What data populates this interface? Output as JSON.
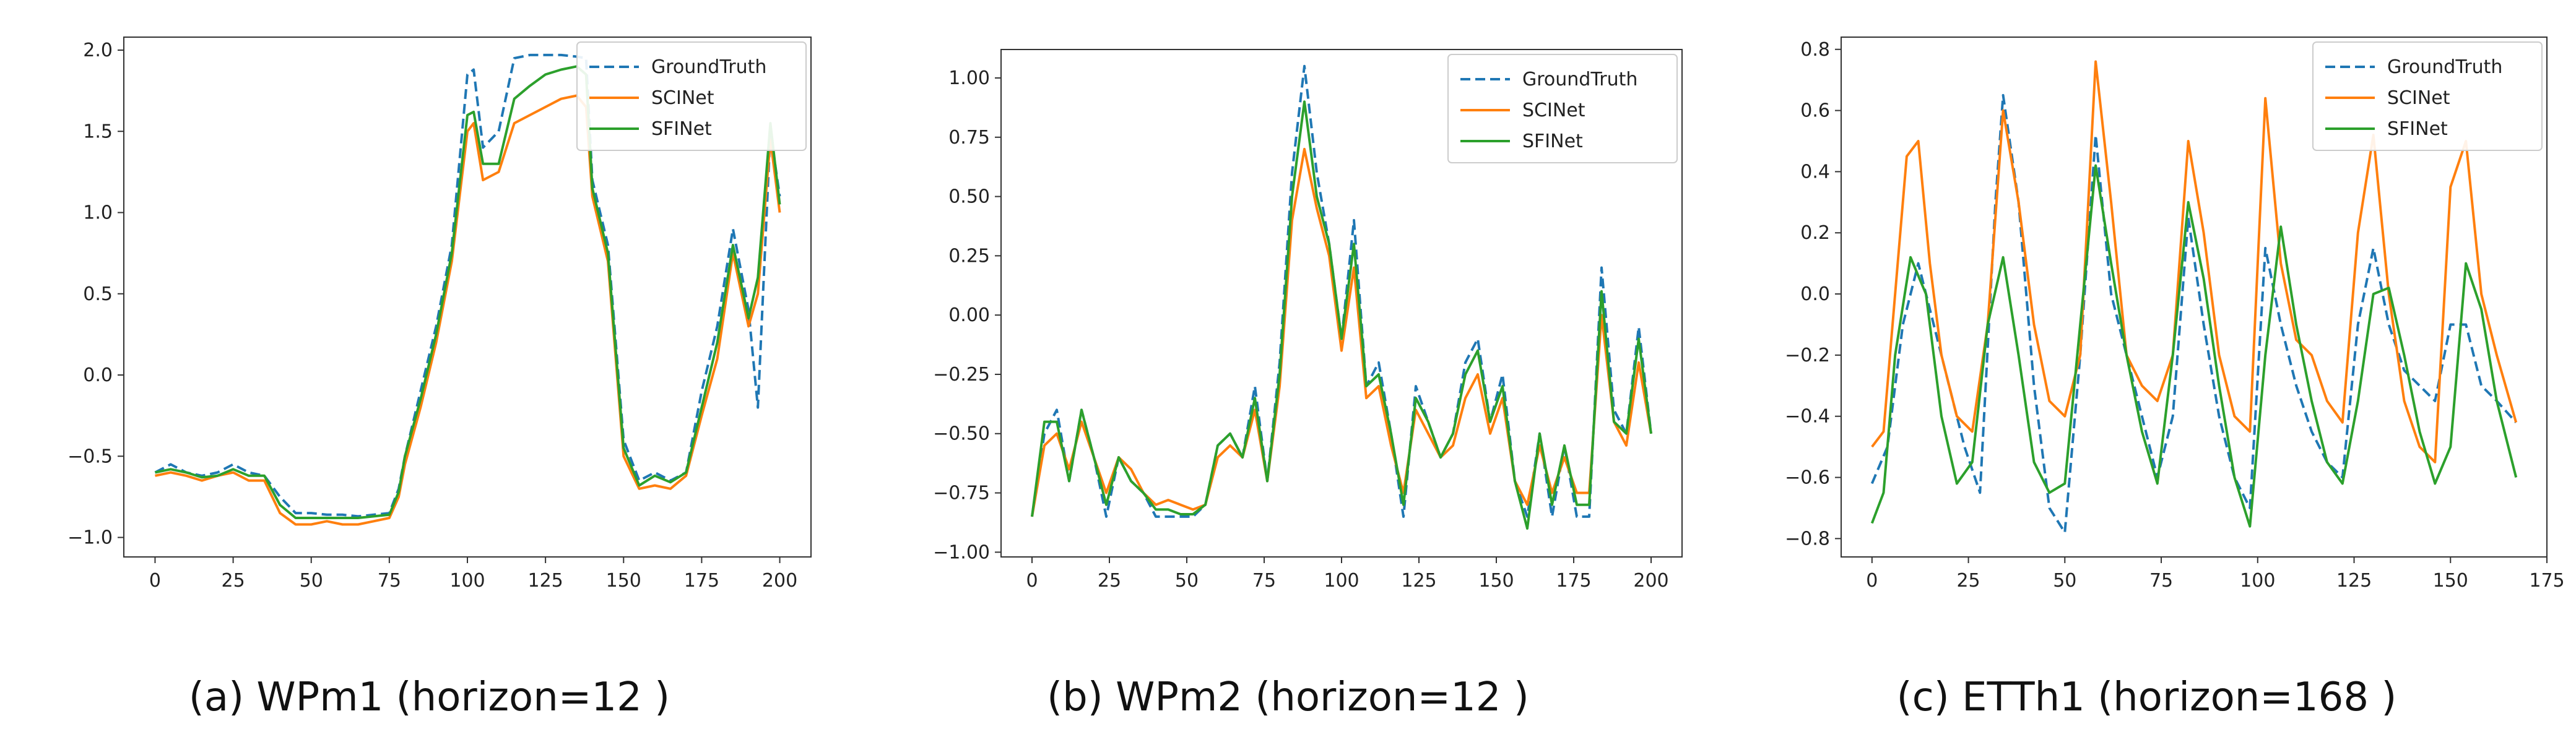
{
  "colors": {
    "groundtruth": "#1f77b4",
    "scinet": "#ff7f0e",
    "sfinet": "#2ca02c"
  },
  "chart_data": [
    {
      "type": "line",
      "caption": "(a) WPm1 (horizon=12 )",
      "xlim": [
        -10,
        210
      ],
      "ylim": [
        -1.12,
        2.08
      ],
      "xticks": [
        0,
        25,
        50,
        75,
        100,
        125,
        150,
        175,
        200
      ],
      "yticks": [
        -1.0,
        -0.5,
        0.0,
        0.5,
        1.0,
        1.5,
        2.0
      ],
      "ytick_labels": [
        "−1.0",
        "−0.5",
        "0.0",
        "0.5",
        "1.0",
        "1.5",
        "2.0"
      ],
      "legend_position": "top-right",
      "series": [
        {
          "name": "GroundTruth",
          "style": "dashed",
          "color": "#1f77b4",
          "x": [
            0,
            5,
            10,
            15,
            20,
            25,
            30,
            35,
            40,
            45,
            50,
            55,
            60,
            65,
            70,
            75,
            78,
            80,
            85,
            90,
            95,
            100,
            102,
            105,
            110,
            115,
            120,
            125,
            130,
            135,
            138,
            140,
            145,
            150,
            155,
            160,
            165,
            170,
            175,
            180,
            185,
            190,
            193,
            197,
            200
          ],
          "y": [
            -0.6,
            -0.55,
            -0.6,
            -0.62,
            -0.6,
            -0.55,
            -0.6,
            -0.62,
            -0.75,
            -0.85,
            -0.85,
            -0.86,
            -0.86,
            -0.87,
            -0.86,
            -0.85,
            -0.7,
            -0.5,
            -0.1,
            0.3,
            0.8,
            1.85,
            1.88,
            1.4,
            1.5,
            1.95,
            1.97,
            1.97,
            1.97,
            1.96,
            1.95,
            1.2,
            0.8,
            -0.4,
            -0.65,
            -0.6,
            -0.65,
            -0.6,
            -0.1,
            0.3,
            0.9,
            0.4,
            -0.2,
            1.5,
            1.1
          ]
        },
        {
          "name": "SCINet",
          "style": "solid",
          "color": "#ff7f0e",
          "x": [
            0,
            5,
            10,
            15,
            20,
            25,
            30,
            35,
            40,
            45,
            50,
            55,
            60,
            65,
            70,
            75,
            78,
            80,
            85,
            90,
            95,
            100,
            102,
            105,
            110,
            115,
            120,
            125,
            130,
            135,
            138,
            140,
            145,
            150,
            155,
            160,
            165,
            170,
            175,
            180,
            185,
            190,
            193,
            197,
            200
          ],
          "y": [
            -0.62,
            -0.6,
            -0.62,
            -0.65,
            -0.62,
            -0.6,
            -0.65,
            -0.65,
            -0.85,
            -0.92,
            -0.92,
            -0.9,
            -0.92,
            -0.92,
            -0.9,
            -0.88,
            -0.75,
            -0.55,
            -0.2,
            0.2,
            0.7,
            1.5,
            1.55,
            1.2,
            1.25,
            1.55,
            1.6,
            1.65,
            1.7,
            1.72,
            1.65,
            1.1,
            0.7,
            -0.5,
            -0.7,
            -0.68,
            -0.7,
            -0.62,
            -0.25,
            0.1,
            0.75,
            0.3,
            0.5,
            1.45,
            1.0
          ]
        },
        {
          "name": "SFINet",
          "style": "solid",
          "color": "#2ca02c",
          "x": [
            0,
            5,
            10,
            15,
            20,
            25,
            30,
            35,
            40,
            45,
            50,
            55,
            60,
            65,
            70,
            75,
            78,
            80,
            85,
            90,
            95,
            100,
            102,
            105,
            110,
            115,
            120,
            125,
            130,
            135,
            138,
            140,
            145,
            150,
            155,
            160,
            165,
            170,
            175,
            180,
            185,
            190,
            193,
            197,
            200
          ],
          "y": [
            -0.6,
            -0.58,
            -0.6,
            -0.63,
            -0.62,
            -0.58,
            -0.62,
            -0.62,
            -0.8,
            -0.88,
            -0.88,
            -0.88,
            -0.88,
            -0.88,
            -0.87,
            -0.86,
            -0.72,
            -0.5,
            -0.15,
            0.25,
            0.75,
            1.6,
            1.62,
            1.3,
            1.3,
            1.7,
            1.78,
            1.85,
            1.88,
            1.9,
            1.85,
            1.15,
            0.75,
            -0.45,
            -0.68,
            -0.62,
            -0.66,
            -0.6,
            -0.2,
            0.2,
            0.8,
            0.35,
            0.6,
            1.55,
            1.05
          ]
        }
      ]
    },
    {
      "type": "line",
      "caption": "(b) WPm2 (horizon=12 )",
      "xlim": [
        -10,
        210
      ],
      "ylim": [
        -1.02,
        1.12
      ],
      "xticks": [
        0,
        25,
        50,
        75,
        100,
        125,
        150,
        175,
        200
      ],
      "yticks": [
        -1.0,
        -0.75,
        -0.5,
        -0.25,
        0.0,
        0.25,
        0.5,
        0.75,
        1.0
      ],
      "ytick_labels": [
        "−1.00",
        "−0.75",
        "−0.50",
        "−0.25",
        "0.00",
        "0.25",
        "0.50",
        "0.75",
        "1.00"
      ],
      "legend_position": "top-right",
      "series": [
        {
          "name": "GroundTruth",
          "style": "dashed",
          "color": "#1f77b4",
          "x": [
            0,
            4,
            8,
            12,
            16,
            20,
            24,
            28,
            32,
            36,
            40,
            44,
            48,
            52,
            56,
            60,
            64,
            68,
            72,
            76,
            80,
            84,
            88,
            92,
            96,
            100,
            104,
            108,
            112,
            116,
            120,
            124,
            128,
            132,
            136,
            140,
            144,
            148,
            152,
            156,
            160,
            164,
            168,
            172,
            176,
            180,
            184,
            188,
            192,
            196,
            200
          ],
          "y": [
            -0.85,
            -0.5,
            -0.4,
            -0.7,
            -0.4,
            -0.6,
            -0.85,
            -0.6,
            -0.7,
            -0.75,
            -0.85,
            -0.85,
            -0.85,
            -0.85,
            -0.8,
            -0.55,
            -0.5,
            -0.6,
            -0.3,
            -0.7,
            -0.2,
            0.6,
            1.05,
            0.6,
            0.3,
            -0.1,
            0.4,
            -0.3,
            -0.2,
            -0.5,
            -0.85,
            -0.3,
            -0.45,
            -0.6,
            -0.5,
            -0.2,
            -0.1,
            -0.45,
            -0.25,
            -0.7,
            -0.85,
            -0.5,
            -0.85,
            -0.55,
            -0.85,
            -0.85,
            0.2,
            -0.4,
            -0.5,
            -0.05,
            -0.5
          ]
        },
        {
          "name": "SCINet",
          "style": "solid",
          "color": "#ff7f0e",
          "x": [
            0,
            4,
            8,
            12,
            16,
            20,
            24,
            28,
            32,
            36,
            40,
            44,
            48,
            52,
            56,
            60,
            64,
            68,
            72,
            76,
            80,
            84,
            88,
            92,
            96,
            100,
            104,
            108,
            112,
            116,
            120,
            124,
            128,
            132,
            136,
            140,
            144,
            148,
            152,
            156,
            160,
            164,
            168,
            172,
            176,
            180,
            184,
            188,
            192,
            196,
            200
          ],
          "y": [
            -0.85,
            -0.55,
            -0.5,
            -0.65,
            -0.45,
            -0.6,
            -0.75,
            -0.6,
            -0.65,
            -0.75,
            -0.8,
            -0.78,
            -0.8,
            -0.82,
            -0.8,
            -0.6,
            -0.55,
            -0.6,
            -0.4,
            -0.7,
            -0.3,
            0.4,
            0.7,
            0.45,
            0.25,
            -0.15,
            0.2,
            -0.35,
            -0.3,
            -0.55,
            -0.75,
            -0.4,
            -0.5,
            -0.6,
            -0.55,
            -0.35,
            -0.25,
            -0.5,
            -0.35,
            -0.7,
            -0.8,
            -0.55,
            -0.75,
            -0.6,
            -0.75,
            -0.75,
            0.0,
            -0.45,
            -0.55,
            -0.2,
            -0.5
          ]
        },
        {
          "name": "SFINet",
          "style": "solid",
          "color": "#2ca02c",
          "x": [
            0,
            4,
            8,
            12,
            16,
            20,
            24,
            28,
            32,
            36,
            40,
            44,
            48,
            52,
            56,
            60,
            64,
            68,
            72,
            76,
            80,
            84,
            88,
            92,
            96,
            100,
            104,
            108,
            112,
            116,
            120,
            124,
            128,
            132,
            136,
            140,
            144,
            148,
            152,
            156,
            160,
            164,
            168,
            172,
            176,
            180,
            184,
            188,
            192,
            196,
            200
          ],
          "y": [
            -0.85,
            -0.45,
            -0.45,
            -0.7,
            -0.4,
            -0.6,
            -0.8,
            -0.6,
            -0.7,
            -0.75,
            -0.82,
            -0.82,
            -0.84,
            -0.84,
            -0.8,
            -0.55,
            -0.5,
            -0.6,
            -0.35,
            -0.7,
            -0.25,
            0.5,
            0.9,
            0.5,
            0.3,
            -0.1,
            0.3,
            -0.3,
            -0.25,
            -0.5,
            -0.8,
            -0.35,
            -0.45,
            -0.6,
            -0.5,
            -0.25,
            -0.15,
            -0.45,
            -0.3,
            -0.7,
            -0.9,
            -0.5,
            -0.8,
            -0.55,
            -0.8,
            -0.8,
            0.1,
            -0.45,
            -0.5,
            -0.1,
            -0.5
          ]
        }
      ]
    },
    {
      "type": "line",
      "caption": "(c) ETTh1 (horizon=168 )",
      "xlim": [
        -8,
        175
      ],
      "ylim": [
        -0.86,
        0.84
      ],
      "xticks": [
        0,
        25,
        50,
        75,
        100,
        125,
        150,
        175
      ],
      "yticks": [
        -0.8,
        -0.6,
        -0.4,
        -0.2,
        0.0,
        0.2,
        0.4,
        0.6,
        0.8
      ],
      "ytick_labels": [
        "−0.8",
        "−0.6",
        "−0.4",
        "−0.2",
        "0.0",
        "0.2",
        "0.4",
        "0.6",
        "0.8"
      ],
      "legend_position": "top-right",
      "series": [
        {
          "name": "GroundTruth",
          "style": "dashed",
          "color": "#1f77b4",
          "x": [
            0,
            4,
            8,
            12,
            16,
            20,
            24,
            28,
            32,
            34,
            38,
            42,
            46,
            50,
            54,
            58,
            62,
            66,
            70,
            74,
            78,
            82,
            86,
            90,
            94,
            98,
            102,
            106,
            110,
            114,
            118,
            122,
            126,
            130,
            134,
            138,
            142,
            146,
            150,
            154,
            158,
            162,
            167
          ],
          "y": [
            -0.62,
            -0.5,
            -0.1,
            0.1,
            -0.1,
            -0.3,
            -0.5,
            -0.65,
            0.3,
            0.65,
            0.3,
            -0.3,
            -0.7,
            -0.78,
            -0.2,
            0.52,
            0.0,
            -0.2,
            -0.4,
            -0.6,
            -0.4,
            0.25,
            -0.1,
            -0.4,
            -0.6,
            -0.7,
            0.15,
            -0.1,
            -0.3,
            -0.45,
            -0.55,
            -0.6,
            -0.1,
            0.15,
            -0.1,
            -0.25,
            -0.3,
            -0.35,
            -0.1,
            -0.1,
            -0.3,
            -0.35,
            -0.42
          ]
        },
        {
          "name": "SCINet",
          "style": "solid",
          "color": "#ff7f0e",
          "x": [
            0,
            3,
            6,
            9,
            12,
            15,
            18,
            22,
            26,
            30,
            34,
            38,
            42,
            46,
            50,
            54,
            58,
            62,
            66,
            70,
            74,
            78,
            82,
            86,
            90,
            94,
            98,
            102,
            106,
            110,
            114,
            118,
            122,
            126,
            130,
            134,
            138,
            142,
            146,
            150,
            154,
            158,
            162,
            167
          ],
          "y": [
            -0.5,
            -0.45,
            0.0,
            0.45,
            0.5,
            0.1,
            -0.2,
            -0.4,
            -0.45,
            -0.1,
            0.6,
            0.3,
            -0.1,
            -0.35,
            -0.4,
            -0.2,
            0.76,
            0.3,
            -0.2,
            -0.3,
            -0.35,
            -0.2,
            0.5,
            0.2,
            -0.2,
            -0.4,
            -0.45,
            0.64,
            0.1,
            -0.15,
            -0.2,
            -0.35,
            -0.42,
            0.2,
            0.52,
            0.0,
            -0.35,
            -0.5,
            -0.55,
            0.35,
            0.5,
            0.0,
            -0.2,
            -0.42
          ]
        },
        {
          "name": "SFINet",
          "style": "solid",
          "color": "#2ca02c",
          "x": [
            0,
            3,
            6,
            10,
            14,
            18,
            22,
            26,
            30,
            34,
            38,
            42,
            46,
            50,
            54,
            58,
            62,
            66,
            70,
            74,
            78,
            82,
            86,
            90,
            94,
            98,
            102,
            106,
            110,
            114,
            118,
            122,
            126,
            130,
            134,
            138,
            142,
            146,
            150,
            154,
            158,
            162,
            167
          ],
          "y": [
            -0.75,
            -0.65,
            -0.2,
            0.12,
            0.0,
            -0.4,
            -0.62,
            -0.55,
            -0.1,
            0.12,
            -0.2,
            -0.55,
            -0.65,
            -0.62,
            -0.1,
            0.42,
            0.1,
            -0.2,
            -0.45,
            -0.62,
            -0.2,
            0.3,
            0.05,
            -0.3,
            -0.6,
            -0.76,
            -0.2,
            0.22,
            -0.1,
            -0.35,
            -0.55,
            -0.62,
            -0.35,
            0.0,
            0.02,
            -0.2,
            -0.45,
            -0.62,
            -0.5,
            0.1,
            -0.05,
            -0.35,
            -0.6
          ]
        }
      ]
    }
  ]
}
